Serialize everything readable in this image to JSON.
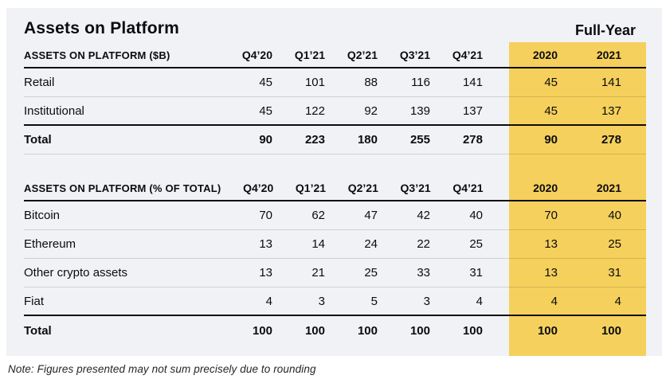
{
  "header": {
    "title": "Assets on Platform",
    "full_year_label": "Full-Year"
  },
  "footer": {
    "note": "Note: Figures presented may not sum precisely due to rounding"
  },
  "colors": {
    "highlight_yellow": "#F5D05C",
    "panel_background": "#F0F2F5",
    "text_black": "#0B0C0E",
    "divider_line": "rgba(11,12,14,0.14)"
  },
  "chart_data": [
    {
      "type": "table",
      "section_header": "ASSETS ON PLATFORM ($B)",
      "columns": [
        "Q4’20",
        "Q1’21",
        "Q2’21",
        "Q3’21",
        "Q4’21",
        "2020",
        "2021"
      ],
      "highlight_columns": [
        "2020",
        "2021"
      ],
      "rows": [
        {
          "label": "Retail",
          "values": [
            45,
            101,
            88,
            116,
            141,
            45,
            141
          ]
        },
        {
          "label": "Institutional",
          "values": [
            45,
            122,
            92,
            139,
            137,
            45,
            137
          ]
        },
        {
          "label": "Total",
          "values": [
            90,
            223,
            180,
            255,
            278,
            90,
            278
          ]
        }
      ]
    },
    {
      "type": "table",
      "section_header": "ASSETS ON PLATFORM (% OF TOTAL)",
      "columns": [
        "Q4’20",
        "Q1’21",
        "Q2’21",
        "Q3’21",
        "Q4’21",
        "2020",
        "2021"
      ],
      "highlight_columns": [
        "2020",
        "2021"
      ],
      "rows": [
        {
          "label": "Bitcoin",
          "values": [
            70,
            62,
            47,
            42,
            40,
            70,
            40
          ]
        },
        {
          "label": "Ethereum",
          "values": [
            13,
            14,
            24,
            22,
            25,
            13,
            25
          ]
        },
        {
          "label": "Other crypto assets",
          "values": [
            13,
            21,
            25,
            33,
            31,
            13,
            31
          ]
        },
        {
          "label": "Fiat",
          "values": [
            4,
            3,
            5,
            3,
            4,
            4,
            4
          ]
        },
        {
          "label": "Total",
          "values": [
            100,
            100,
            100,
            100,
            100,
            100,
            100
          ]
        }
      ]
    }
  ]
}
